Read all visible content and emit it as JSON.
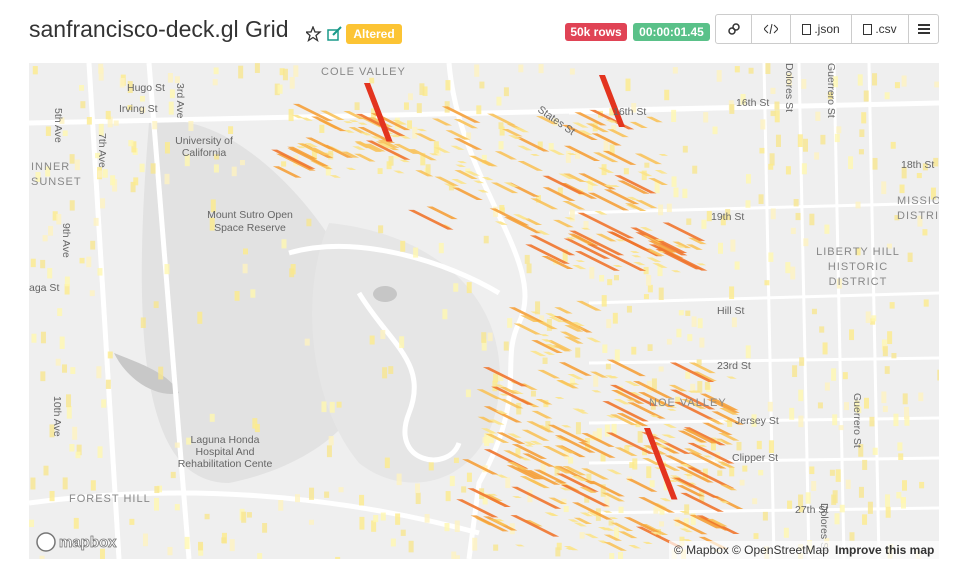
{
  "header": {
    "title": "sanfrancisco-deck.gl Grid",
    "status": "Altered",
    "row_count": "50k rows",
    "timer": "00:00:01.45",
    "actions": [
      ".json",
      ".csv"
    ]
  },
  "map": {
    "labels": [
      "COLE VALLEY",
      "Hugo St",
      "Irving St",
      "3rd Ave",
      "5th Ave",
      "7th Ave",
      "University of",
      "California",
      "16th St",
      "16th St",
      "Dolores St",
      "Guerrero St",
      "States St",
      "18th St",
      "INNER",
      "SUNSET",
      "Mount Sutro Open",
      "Space Reserve",
      "9th Ave",
      "aga St",
      "19th St",
      "LIBERTY HILL",
      "HISTORIC",
      "DISTRICT",
      "MISSION",
      "DISTRICT",
      "Hill St",
      "23rd St",
      "NOE VALLEY",
      "Jersey St",
      "Guerrero St",
      "10th Ave",
      "Laguna Honda",
      "Hospital And",
      "Rehabilitation Cente",
      "Clipper St",
      "FOREST HILL",
      "27th St",
      "Dolores St"
    ],
    "logo": "mapbox",
    "attribution": [
      "© Mapbox",
      "© OpenStreetMap",
      "Improve this map"
    ]
  }
}
